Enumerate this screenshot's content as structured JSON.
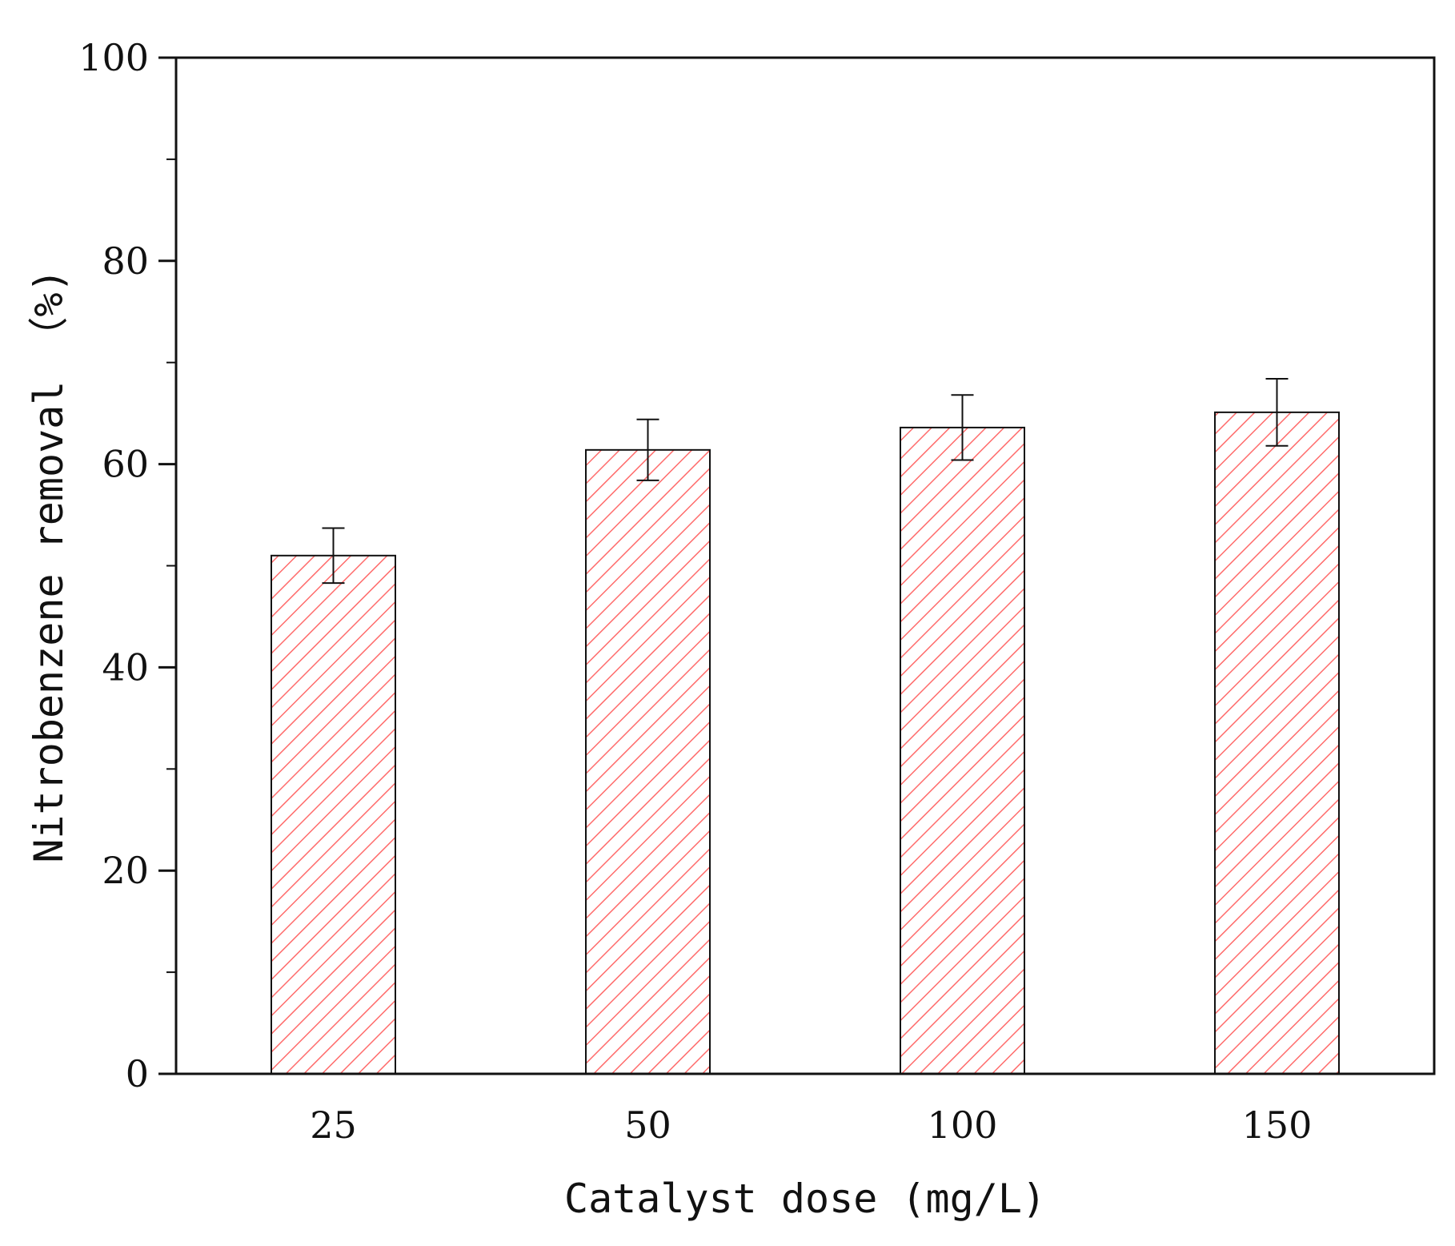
{
  "chart_data": {
    "type": "bar",
    "title": "",
    "xlabel": "Catalyst dose (mg/L)",
    "ylabel": "Nitrobenzene removal （%)",
    "categories": [
      "25",
      "50",
      "100",
      "150"
    ],
    "values": [
      51,
      61.4,
      63.6,
      65.1
    ],
    "errors": [
      2.7,
      3.0,
      3.2,
      3.3
    ],
    "ylim": [
      0,
      100
    ],
    "yticks": [
      0,
      20,
      40,
      60,
      80,
      100
    ],
    "ytick_labels": [
      "0",
      "20",
      "40",
      "60",
      "80",
      "100"
    ],
    "minor_ytick_step": 10,
    "grid": false,
    "legend": "none",
    "bar_style": "hatched",
    "colors": {
      "bar_hatch": "#ff6b6b",
      "bar_edge": "#111111",
      "axis": "#111111",
      "text": "#111111"
    }
  }
}
